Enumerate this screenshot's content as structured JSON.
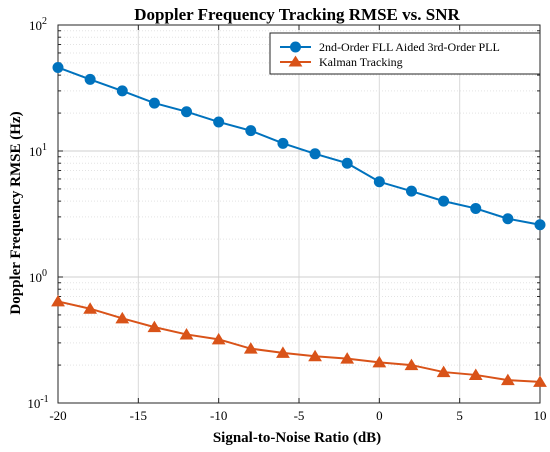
{
  "chart_data": {
    "type": "line",
    "title": "Doppler Frequency Tracking RMSE vs. SNR",
    "xlabel": "Signal-to-Noise Ratio (dB)",
    "ylabel": "Doppler Frequency RMSE (Hz)",
    "xlim": [
      -20,
      10
    ],
    "ylim": [
      0.1,
      100
    ],
    "yscale": "log",
    "grid": true,
    "legend_position": "top-right",
    "x_ticks": [
      "-20",
      "-15",
      "-10",
      "-5",
      "0",
      "5",
      "10"
    ],
    "x_tick_values": [
      -20,
      -15,
      -10,
      -5,
      0,
      5,
      10
    ],
    "y_ticks": [
      {
        "base": "10",
        "exp": "-1",
        "value": 0.1
      },
      {
        "base": "10",
        "exp": "0",
        "value": 1
      },
      {
        "base": "10",
        "exp": "1",
        "value": 10
      },
      {
        "base": "10",
        "exp": "2",
        "value": 100
      }
    ],
    "x": [
      -20,
      -18,
      -16,
      -14,
      -12,
      -10,
      -8,
      -6,
      -4,
      -2,
      0,
      2,
      4,
      6,
      8,
      10
    ],
    "series": [
      {
        "name": "2nd-Order FLL Aided 3rd-Order PLL",
        "color": "#0072BD",
        "marker": "circle",
        "values": [
          46,
          37,
          30,
          24,
          20.5,
          17,
          14.5,
          11.5,
          9.5,
          8,
          5.7,
          4.8,
          4.0,
          3.5,
          2.9,
          2.6
        ]
      },
      {
        "name": "Kalman Tracking",
        "color": "#D95319",
        "marker": "triangle",
        "values": [
          0.64,
          0.56,
          0.47,
          0.4,
          0.35,
          0.32,
          0.27,
          0.25,
          0.235,
          0.225,
          0.21,
          0.2,
          0.176,
          0.167,
          0.152,
          0.147
        ]
      }
    ]
  }
}
